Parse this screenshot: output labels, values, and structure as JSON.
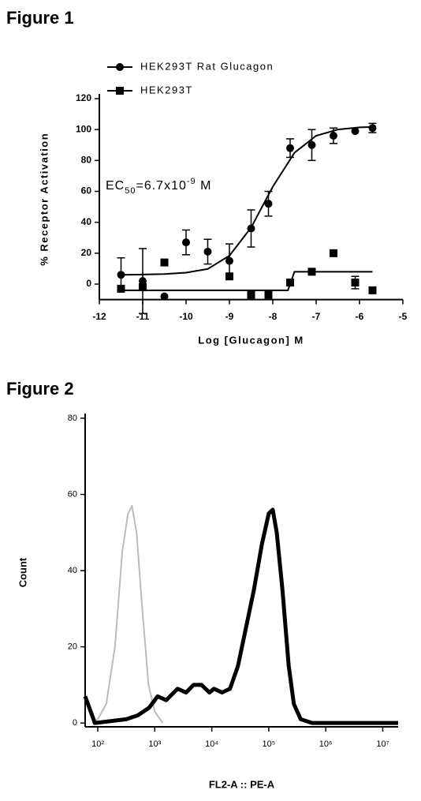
{
  "chart_data": [
    {
      "type": "scatter",
      "heading": "Figure 1",
      "x_label": "Log [Glucagon] M",
      "y_label": "% Receptor Activation",
      "annotation": [
        "EC",
        "50",
        "=6.7x10",
        "-9",
        " M"
      ],
      "xlim": [
        -12,
        -5
      ],
      "xticks": [
        -12,
        -11,
        -10,
        -9,
        -8,
        -7,
        -6,
        -5
      ],
      "ylim": [
        -10,
        120
      ],
      "yticks": [
        0,
        20,
        40,
        60,
        80,
        100,
        120
      ],
      "legend": "top-left",
      "series": [
        {
          "name": "HEK293T Rat Glucagon",
          "color": "#000000",
          "marker": "circle",
          "x": [
            -11.5,
            -11,
            -10.5,
            -10,
            -9.5,
            -9,
            -8.5,
            -8.1,
            -7.6,
            -7.1,
            -6.6,
            -6.1,
            -5.7
          ],
          "values": [
            6,
            2,
            -8,
            27,
            21,
            15,
            36,
            52,
            88,
            90,
            96,
            99,
            101
          ],
          "errors": [
            11,
            21,
            null,
            8,
            8,
            11,
            12,
            8,
            6,
            10,
            5,
            null,
            3
          ],
          "fit_x": [
            -11.5,
            -11,
            -10.5,
            -10,
            -9.5,
            -9,
            -8.5,
            -8,
            -7.5,
            -7,
            -6.5,
            -6,
            -5.7
          ],
          "fit_values": [
            6,
            6.2,
            6.5,
            7.4,
            9.8,
            18.4,
            36.6,
            63,
            85,
            96,
            100,
            101.4,
            101.7
          ]
        },
        {
          "name": "HEK293T",
          "color": "#000000",
          "marker": "square",
          "x": [
            -11.5,
            -11,
            -10.5,
            -9,
            -8.5,
            -8.1,
            -7.6,
            -7.1,
            -6.6,
            -6.1,
            -5.7
          ],
          "values": [
            -3,
            -2,
            14,
            5,
            -7,
            -7,
            1,
            8,
            20,
            1,
            -4
          ],
          "errors": [
            null,
            null,
            null,
            null,
            null,
            null,
            null,
            null,
            2,
            4,
            null
          ],
          "fit_x": [
            -11.5,
            -7.65,
            -7.5,
            -5.7
          ],
          "fit_values": [
            -4,
            -4,
            8,
            8
          ]
        }
      ]
    },
    {
      "type": "line",
      "heading": "Figure 2",
      "x_label": "FL2-A :: PE-A",
      "y_label": "Count",
      "xscale": "log",
      "xlim": [
        60,
        18620871
      ],
      "xticks": [
        {
          "value": 100,
          "label": "10²"
        },
        {
          "value": 1000,
          "label": "10³"
        },
        {
          "value": 10000,
          "label": "10⁴"
        },
        {
          "value": 100000,
          "label": "10⁵"
        },
        {
          "value": 1000000,
          "label": "10⁶"
        },
        {
          "value": 10000000,
          "label": "10⁷"
        }
      ],
      "ylim": [
        -1,
        80
      ],
      "yticks": [
        0,
        20,
        40,
        60,
        80
      ],
      "series": [
        {
          "color": "#bbbbbb",
          "line_width": 2,
          "x": [
            79,
            100,
            141,
            200,
            269,
            339,
            398,
            479,
            603,
            776,
            1000,
            1380
          ],
          "values": [
            0,
            1,
            5,
            20,
            45,
            55,
            57,
            50,
            30,
            10,
            3,
            0
          ]
        },
        {
          "color": "#000000",
          "line_width": 5,
          "x": [
            60,
            89,
            316,
            501,
            794,
            1122,
            1585,
            2512,
            3548,
            4786,
            6607,
            9120,
            10965,
            15136,
            20893,
            28840,
            39811,
            54954,
            75858,
            100000,
            117490,
            138038,
            173780,
            223872,
            275423,
            363078,
            575440,
            18620871
          ],
          "values": [
            7,
            0,
            1,
            2,
            4,
            7,
            6,
            9,
            8,
            10,
            10,
            8,
            9,
            8,
            9,
            15,
            25,
            35,
            47,
            55,
            56,
            50,
            35,
            15,
            5,
            1,
            0,
            0
          ]
        }
      ]
    }
  ]
}
